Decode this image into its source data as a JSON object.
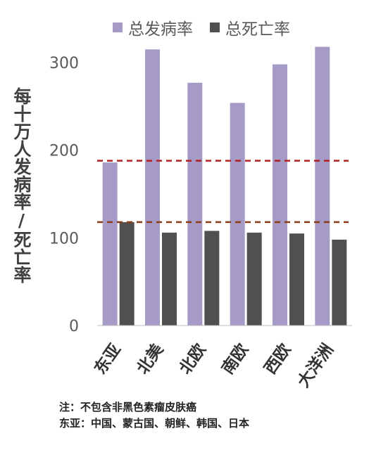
{
  "chart_data": {
    "type": "bar",
    "categories": [
      "东亚",
      "北美",
      "北欧",
      "南欧",
      "西欧",
      "大洋洲"
    ],
    "series": [
      {
        "name": "总发病率",
        "values": [
          186,
          315,
          277,
          254,
          298,
          318
        ],
        "color": "#a69bc6"
      },
      {
        "name": "总死亡率",
        "values": [
          118,
          106,
          108,
          106,
          105,
          98
        ],
        "color": "#505050"
      }
    ],
    "yticks": [
      0,
      100,
      200,
      300
    ],
    "ylim": [
      0,
      330
    ],
    "ylabel": "每十万人发病率/死亡率",
    "reference_lines": [
      {
        "value": 188,
        "color": "#b22222",
        "style": "dashed"
      },
      {
        "value": 118,
        "color": "#8b3a1a",
        "style": "dashed"
      }
    ],
    "grid": false,
    "legend_position": "top"
  },
  "notes": {
    "line1": "注：不包含非黑色素瘤皮肤癌",
    "line2": "东亚：中国、蒙古国、朝鲜、韩国、日本"
  }
}
